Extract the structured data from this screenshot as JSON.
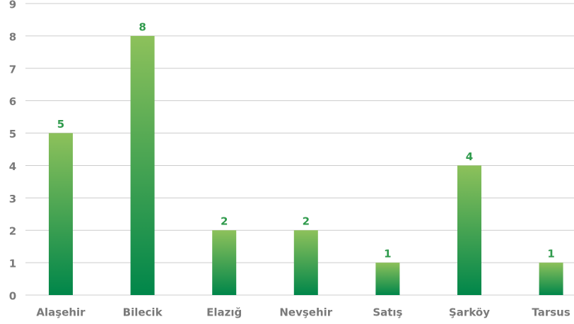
{
  "chart_data": {
    "type": "bar",
    "categories": [
      "Alaşehir",
      "Bilecik",
      "Elazığ",
      "Nevşehir",
      "Satış",
      "Şarköy",
      "Tarsus"
    ],
    "values": [
      5,
      8,
      2,
      2,
      1,
      4,
      1
    ],
    "gradient": [
      "#8dc15b",
      "#00864a"
    ],
    "ylim": [
      0,
      9
    ],
    "yticks": [
      0,
      1,
      2,
      3,
      4,
      5,
      6,
      7,
      8,
      9
    ],
    "grid": true
  }
}
